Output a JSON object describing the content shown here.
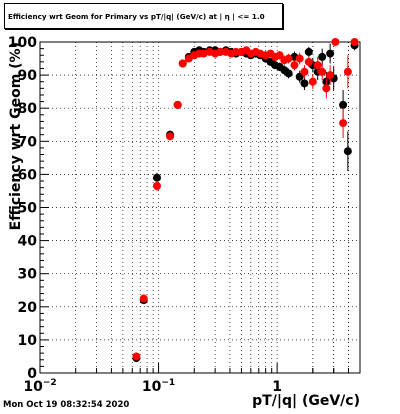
{
  "title": "Efficiency wrt Geom for Primary vs pT/|q| (GeV/c) at | η | <= 1.0",
  "timestamp": "Mon Oct 19 08:32:54 2020",
  "colors": {
    "series_black": "#000000",
    "series_red": "#ff0000",
    "grid": "#000000",
    "background": "#ffffff"
  },
  "chart_data": {
    "type": "scatter",
    "title": "Efficiency wrt Geom for Primary vs pT/|q| (GeV/c) at | η | <= 1.0",
    "xlabel": "pT/|q| (GeV/c)",
    "ylabel": "Efficiency wrt Geom (%)",
    "x_scale": "log",
    "xlim": [
      0.01,
      5.0
    ],
    "ylim": [
      0,
      100
    ],
    "x_ticks": [
      {
        "value": 0.01,
        "label": "10",
        "sup": "−2"
      },
      {
        "value": 0.1,
        "label": "10",
        "sup": "−1"
      },
      {
        "value": 1,
        "label": "1",
        "sup": ""
      }
    ],
    "y_ticks": [
      0,
      10,
      20,
      30,
      40,
      50,
      60,
      70,
      80,
      90,
      100
    ],
    "grid": true,
    "series": [
      {
        "color": "#000000",
        "points": [
          {
            "x": 0.065,
            "y": 4.5,
            "err": 1.2
          },
          {
            "x": 0.075,
            "y": 22.0,
            "err": 1.0
          },
          {
            "x": 0.097,
            "y": 59.0,
            "err": 1.5
          },
          {
            "x": 0.125,
            "y": 72.0,
            "err": 1.2
          },
          {
            "x": 0.145,
            "y": 81.0,
            "err": 1.0
          },
          {
            "x": 0.16,
            "y": 93.5,
            "err": 1.0
          },
          {
            "x": 0.18,
            "y": 95.5,
            "err": 0.8
          },
          {
            "x": 0.2,
            "y": 97.0,
            "err": 0.6
          },
          {
            "x": 0.22,
            "y": 97.5,
            "err": 0.6
          },
          {
            "x": 0.24,
            "y": 97.0,
            "err": 0.6
          },
          {
            "x": 0.27,
            "y": 97.5,
            "err": 0.6
          },
          {
            "x": 0.3,
            "y": 97.5,
            "err": 0.6
          },
          {
            "x": 0.33,
            "y": 97.0,
            "err": 0.6
          },
          {
            "x": 0.37,
            "y": 97.5,
            "err": 0.6
          },
          {
            "x": 0.41,
            "y": 97.0,
            "err": 0.7
          },
          {
            "x": 0.45,
            "y": 96.5,
            "err": 0.7
          },
          {
            "x": 0.5,
            "y": 97.0,
            "err": 0.7
          },
          {
            "x": 0.55,
            "y": 96.5,
            "err": 0.8
          },
          {
            "x": 0.6,
            "y": 96.0,
            "err": 0.8
          },
          {
            "x": 0.66,
            "y": 96.5,
            "err": 0.9
          },
          {
            "x": 0.72,
            "y": 96.0,
            "err": 0.9
          },
          {
            "x": 0.8,
            "y": 95.0,
            "err": 1.0
          },
          {
            "x": 0.88,
            "y": 94.0,
            "err": 1.1
          },
          {
            "x": 0.96,
            "y": 93.0,
            "err": 1.2
          },
          {
            "x": 1.05,
            "y": 92.5,
            "err": 1.3
          },
          {
            "x": 1.15,
            "y": 91.5,
            "err": 1.4
          },
          {
            "x": 1.25,
            "y": 90.5,
            "err": 1.5
          },
          {
            "x": 1.4,
            "y": 95.5,
            "err": 1.6
          },
          {
            "x": 1.55,
            "y": 89.5,
            "err": 1.8
          },
          {
            "x": 1.7,
            "y": 87.5,
            "err": 2.0
          },
          {
            "x": 1.85,
            "y": 97.0,
            "err": 1.5
          },
          {
            "x": 2.0,
            "y": 93.0,
            "err": 2.2
          },
          {
            "x": 2.2,
            "y": 91.0,
            "err": 2.5
          },
          {
            "x": 2.4,
            "y": 95.5,
            "err": 2.5
          },
          {
            "x": 2.6,
            "y": 88.0,
            "err": 3.0
          },
          {
            "x": 2.8,
            "y": 96.5,
            "err": 3.0
          },
          {
            "x": 3.0,
            "y": 89.0,
            "err": 3.5
          },
          {
            "x": 3.6,
            "y": 81.0,
            "err": 4.5
          },
          {
            "x": 3.95,
            "y": 67.0,
            "err": 6.0
          },
          {
            "x": 4.5,
            "y": 99.0,
            "err": 1.5
          }
        ]
      },
      {
        "color": "#ff0000",
        "points": [
          {
            "x": 0.065,
            "y": 5.0,
            "err": 1.2
          },
          {
            "x": 0.075,
            "y": 22.5,
            "err": 1.0
          },
          {
            "x": 0.097,
            "y": 56.5,
            "err": 1.5
          },
          {
            "x": 0.125,
            "y": 71.5,
            "err": 1.2
          },
          {
            "x": 0.145,
            "y": 81.0,
            "err": 1.0
          },
          {
            "x": 0.16,
            "y": 93.5,
            "err": 1.0
          },
          {
            "x": 0.18,
            "y": 95.0,
            "err": 0.8
          },
          {
            "x": 0.2,
            "y": 96.0,
            "err": 0.6
          },
          {
            "x": 0.22,
            "y": 96.5,
            "err": 0.6
          },
          {
            "x": 0.24,
            "y": 96.5,
            "err": 0.6
          },
          {
            "x": 0.27,
            "y": 97.0,
            "err": 0.6
          },
          {
            "x": 0.3,
            "y": 96.5,
            "err": 0.6
          },
          {
            "x": 0.33,
            "y": 97.0,
            "err": 0.6
          },
          {
            "x": 0.37,
            "y": 97.0,
            "err": 0.6
          },
          {
            "x": 0.41,
            "y": 96.5,
            "err": 0.7
          },
          {
            "x": 0.45,
            "y": 97.0,
            "err": 0.7
          },
          {
            "x": 0.5,
            "y": 97.0,
            "err": 0.7
          },
          {
            "x": 0.55,
            "y": 97.5,
            "err": 0.8
          },
          {
            "x": 0.6,
            "y": 96.5,
            "err": 0.8
          },
          {
            "x": 0.66,
            "y": 97.0,
            "err": 0.9
          },
          {
            "x": 0.72,
            "y": 96.5,
            "err": 0.9
          },
          {
            "x": 0.8,
            "y": 96.0,
            "err": 1.0
          },
          {
            "x": 0.88,
            "y": 96.5,
            "err": 1.1
          },
          {
            "x": 0.96,
            "y": 95.5,
            "err": 1.2
          },
          {
            "x": 1.05,
            "y": 96.0,
            "err": 1.3
          },
          {
            "x": 1.15,
            "y": 94.5,
            "err": 1.4
          },
          {
            "x": 1.25,
            "y": 95.0,
            "err": 1.5
          },
          {
            "x": 1.4,
            "y": 93.0,
            "err": 1.6
          },
          {
            "x": 1.55,
            "y": 95.0,
            "err": 1.8
          },
          {
            "x": 1.7,
            "y": 91.0,
            "err": 2.0
          },
          {
            "x": 1.85,
            "y": 94.0,
            "err": 1.5
          },
          {
            "x": 2.0,
            "y": 88.0,
            "err": 2.2
          },
          {
            "x": 2.2,
            "y": 93.0,
            "err": 2.5
          },
          {
            "x": 2.4,
            "y": 91.0,
            "err": 2.5
          },
          {
            "x": 2.6,
            "y": 86.0,
            "err": 3.0
          },
          {
            "x": 2.8,
            "y": 90.0,
            "err": 3.0
          },
          {
            "x": 3.1,
            "y": 100.0,
            "err": 1.0
          },
          {
            "x": 3.6,
            "y": 75.5,
            "err": 4.5
          },
          {
            "x": 3.95,
            "y": 91.0,
            "err": 5.0
          },
          {
            "x": 4.5,
            "y": 100.0,
            "err": 1.0
          }
        ]
      }
    ]
  }
}
